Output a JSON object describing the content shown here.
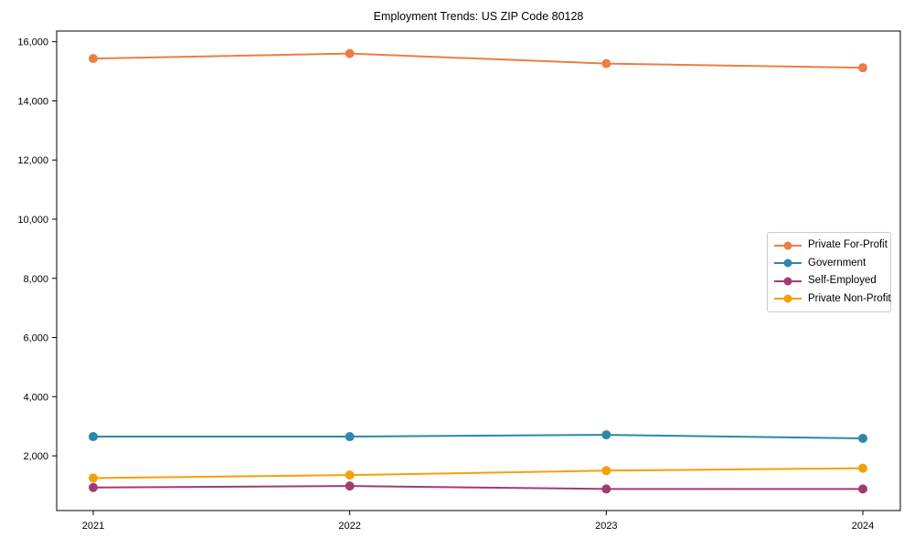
{
  "chart_data": {
    "type": "line",
    "title": "Employment Trends: US ZIP Code 80128",
    "xlabel": "",
    "ylabel": "",
    "x_categories": [
      "2021",
      "2022",
      "2023",
      "2024"
    ],
    "series": [
      {
        "name": "Private For-Profit",
        "color": "#EA7E45",
        "values": [
          15430,
          15600,
          15260,
          15120
        ]
      },
      {
        "name": "Government",
        "color": "#2E86AB",
        "values": [
          2650,
          2650,
          2710,
          2590
        ]
      },
      {
        "name": "Self-Employed",
        "color": "#A23B72",
        "values": [
          930,
          980,
          880,
          880
        ]
      },
      {
        "name": "Private Non-Profit",
        "color": "#F5A008",
        "values": [
          1250,
          1350,
          1500,
          1580
        ]
      }
    ],
    "yticks": [
      2000,
      4000,
      6000,
      8000,
      10000,
      12000,
      14000,
      16000
    ],
    "ytick_labels": [
      "2,000",
      "4,000",
      "6,000",
      "8,000",
      "10,000",
      "12,000",
      "14,000",
      "16,000"
    ],
    "ylim": [
      150,
      16360
    ],
    "grid": false,
    "legend_position": "center-right",
    "line_width": 2,
    "marker": "circle",
    "marker_radius": 5
  }
}
